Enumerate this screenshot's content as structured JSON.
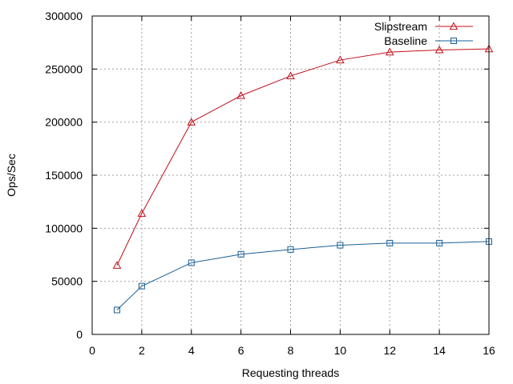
{
  "chart_data": {
    "type": "line",
    "xlabel": "Requesting threads",
    "ylabel": "Ops/Sec",
    "xlim": [
      0,
      16
    ],
    "ylim": [
      0,
      300000
    ],
    "xticks": [
      0,
      2,
      4,
      6,
      8,
      10,
      12,
      14,
      16
    ],
    "yticks": [
      0,
      50000,
      100000,
      150000,
      200000,
      250000,
      300000
    ],
    "grid": true,
    "legend_position": "top-right",
    "series": [
      {
        "name": "Slipstream",
        "color": "#c0101a",
        "marker": "triangle",
        "x": [
          1,
          2,
          4,
          6,
          8,
          10,
          12,
          14,
          16
        ],
        "y": [
          65000,
          114000,
          200000,
          225000,
          243500,
          258500,
          266000,
          268000,
          269000
        ]
      },
      {
        "name": "Baseline",
        "color": "#1a5f94",
        "marker": "square",
        "x": [
          1,
          2,
          4,
          6,
          8,
          10,
          12,
          14,
          16
        ],
        "y": [
          23000,
          45500,
          67500,
          75500,
          80000,
          84000,
          86000,
          86000,
          87500
        ]
      }
    ]
  }
}
